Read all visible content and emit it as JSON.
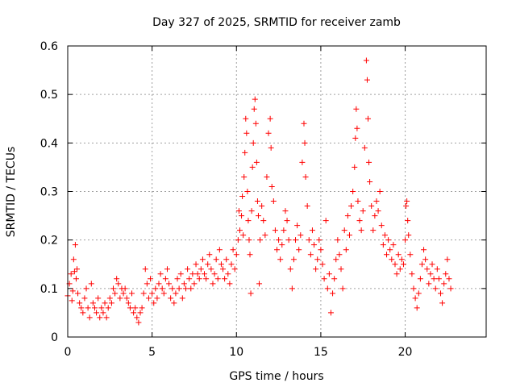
{
  "chart_data": {
    "type": "scatter",
    "title": "Day 327 of 2025, SRMTID for receiver zamb",
    "xlabel": "GPS time / hours",
    "ylabel": "SRMTID / TECUs",
    "xlim": [
      0,
      24.8
    ],
    "ylim": [
      0,
      0.6
    ],
    "grid": true,
    "marker": "+",
    "series_color": "#ff0000",
    "x_ticks": [
      "0",
      "5",
      "10",
      "15",
      "20"
    ],
    "y_ticks": [
      "0",
      "0.1",
      "0.2",
      "0.3",
      "0.4",
      "0.5",
      "0.6"
    ],
    "series": [
      {
        "name": "SRMTID",
        "points": [
          [
            0.0,
            0.085
          ],
          [
            0.1,
            0.11
          ],
          [
            0.2,
            0.13
          ],
          [
            0.25,
            0.075
          ],
          [
            0.3,
            0.095
          ],
          [
            0.35,
            0.16
          ],
          [
            0.4,
            0.135
          ],
          [
            0.45,
            0.19
          ],
          [
            0.5,
            0.12
          ],
          [
            0.55,
            0.14
          ],
          [
            0.6,
            0.09
          ],
          [
            0.7,
            0.07
          ],
          [
            0.8,
            0.06
          ],
          [
            0.9,
            0.05
          ],
          [
            1.0,
            0.08
          ],
          [
            1.1,
            0.1
          ],
          [
            1.2,
            0.06
          ],
          [
            1.3,
            0.04
          ],
          [
            1.4,
            0.11
          ],
          [
            1.5,
            0.07
          ],
          [
            1.6,
            0.06
          ],
          [
            1.7,
            0.05
          ],
          [
            1.8,
            0.08
          ],
          [
            1.9,
            0.04
          ],
          [
            2.0,
            0.06
          ],
          [
            2.1,
            0.05
          ],
          [
            2.2,
            0.07
          ],
          [
            2.3,
            0.04
          ],
          [
            2.4,
            0.06
          ],
          [
            2.5,
            0.08
          ],
          [
            2.6,
            0.07
          ],
          [
            2.7,
            0.1
          ],
          [
            2.8,
            0.09
          ],
          [
            2.9,
            0.12
          ],
          [
            3.0,
            0.11
          ],
          [
            3.1,
            0.08
          ],
          [
            3.2,
            0.1
          ],
          [
            3.3,
            0.09
          ],
          [
            3.4,
            0.1
          ],
          [
            3.5,
            0.08
          ],
          [
            3.6,
            0.07
          ],
          [
            3.7,
            0.06
          ],
          [
            3.8,
            0.09
          ],
          [
            3.9,
            0.05
          ],
          [
            4.0,
            0.06
          ],
          [
            4.1,
            0.04
          ],
          [
            4.2,
            0.03
          ],
          [
            4.3,
            0.05
          ],
          [
            4.4,
            0.06
          ],
          [
            4.5,
            0.09
          ],
          [
            4.6,
            0.14
          ],
          [
            4.7,
            0.11
          ],
          [
            4.8,
            0.08
          ],
          [
            4.9,
            0.12
          ],
          [
            5.0,
            0.09
          ],
          [
            5.1,
            0.07
          ],
          [
            5.2,
            0.1
          ],
          [
            5.3,
            0.08
          ],
          [
            5.4,
            0.11
          ],
          [
            5.5,
            0.13
          ],
          [
            5.6,
            0.1
          ],
          [
            5.7,
            0.09
          ],
          [
            5.8,
            0.12
          ],
          [
            5.9,
            0.14
          ],
          [
            6.0,
            0.11
          ],
          [
            6.1,
            0.08
          ],
          [
            6.2,
            0.1
          ],
          [
            6.3,
            0.07
          ],
          [
            6.4,
            0.09
          ],
          [
            6.5,
            0.12
          ],
          [
            6.6,
            0.1
          ],
          [
            6.7,
            0.13
          ],
          [
            6.8,
            0.08
          ],
          [
            6.9,
            0.11
          ],
          [
            7.0,
            0.1
          ],
          [
            7.1,
            0.14
          ],
          [
            7.2,
            0.12
          ],
          [
            7.3,
            0.1
          ],
          [
            7.4,
            0.13
          ],
          [
            7.5,
            0.11
          ],
          [
            7.6,
            0.15
          ],
          [
            7.7,
            0.13
          ],
          [
            7.8,
            0.12
          ],
          [
            7.9,
            0.14
          ],
          [
            8.0,
            0.16
          ],
          [
            8.1,
            0.13
          ],
          [
            8.2,
            0.12
          ],
          [
            8.3,
            0.15
          ],
          [
            8.4,
            0.17
          ],
          [
            8.5,
            0.14
          ],
          [
            8.6,
            0.11
          ],
          [
            8.7,
            0.13
          ],
          [
            8.8,
            0.16
          ],
          [
            8.9,
            0.12
          ],
          [
            9.0,
            0.18
          ],
          [
            9.1,
            0.15
          ],
          [
            9.2,
            0.14
          ],
          [
            9.3,
            0.12
          ],
          [
            9.4,
            0.16
          ],
          [
            9.5,
            0.13
          ],
          [
            9.6,
            0.11
          ],
          [
            9.7,
            0.15
          ],
          [
            9.8,
            0.18
          ],
          [
            9.9,
            0.14
          ],
          [
            10.0,
            0.17
          ],
          [
            10.1,
            0.2
          ],
          [
            10.15,
            0.26
          ],
          [
            10.2,
            0.22
          ],
          [
            10.3,
            0.25
          ],
          [
            10.35,
            0.29
          ],
          [
            10.4,
            0.21
          ],
          [
            10.45,
            0.33
          ],
          [
            10.5,
            0.38
          ],
          [
            10.55,
            0.45
          ],
          [
            10.6,
            0.42
          ],
          [
            10.65,
            0.3
          ],
          [
            10.7,
            0.24
          ],
          [
            10.75,
            0.2
          ],
          [
            10.8,
            0.17
          ],
          [
            10.85,
            0.09
          ],
          [
            10.9,
            0.26
          ],
          [
            10.95,
            0.35
          ],
          [
            11.0,
            0.4
          ],
          [
            11.05,
            0.47
          ],
          [
            11.1,
            0.49
          ],
          [
            11.15,
            0.44
          ],
          [
            11.2,
            0.36
          ],
          [
            11.25,
            0.28
          ],
          [
            11.3,
            0.25
          ],
          [
            11.35,
            0.11
          ],
          [
            11.4,
            0.2
          ],
          [
            11.5,
            0.27
          ],
          [
            11.6,
            0.24
          ],
          [
            11.7,
            0.21
          ],
          [
            11.8,
            0.33
          ],
          [
            11.9,
            0.42
          ],
          [
            12.0,
            0.45
          ],
          [
            12.05,
            0.39
          ],
          [
            12.1,
            0.31
          ],
          [
            12.2,
            0.28
          ],
          [
            12.3,
            0.22
          ],
          [
            12.4,
            0.18
          ],
          [
            12.5,
            0.2
          ],
          [
            12.6,
            0.16
          ],
          [
            12.7,
            0.19
          ],
          [
            12.8,
            0.22
          ],
          [
            12.9,
            0.26
          ],
          [
            13.0,
            0.24
          ],
          [
            13.1,
            0.2
          ],
          [
            13.2,
            0.14
          ],
          [
            13.3,
            0.1
          ],
          [
            13.4,
            0.16
          ],
          [
            13.5,
            0.2
          ],
          [
            13.6,
            0.23
          ],
          [
            13.7,
            0.18
          ],
          [
            13.8,
            0.21
          ],
          [
            13.9,
            0.36
          ],
          [
            14.0,
            0.44
          ],
          [
            14.05,
            0.4
          ],
          [
            14.1,
            0.33
          ],
          [
            14.2,
            0.27
          ],
          [
            14.3,
            0.2
          ],
          [
            14.4,
            0.17
          ],
          [
            14.5,
            0.22
          ],
          [
            14.6,
            0.19
          ],
          [
            14.7,
            0.14
          ],
          [
            14.8,
            0.16
          ],
          [
            14.9,
            0.2
          ],
          [
            15.0,
            0.18
          ],
          [
            15.1,
            0.15
          ],
          [
            15.2,
            0.12
          ],
          [
            15.3,
            0.24
          ],
          [
            15.4,
            0.1
          ],
          [
            15.5,
            0.13
          ],
          [
            15.6,
            0.05
          ],
          [
            15.7,
            0.09
          ],
          [
            15.8,
            0.12
          ],
          [
            15.9,
            0.16
          ],
          [
            16.0,
            0.2
          ],
          [
            16.1,
            0.17
          ],
          [
            16.2,
            0.14
          ],
          [
            16.3,
            0.1
          ],
          [
            16.4,
            0.22
          ],
          [
            16.5,
            0.18
          ],
          [
            16.6,
            0.25
          ],
          [
            16.7,
            0.21
          ],
          [
            16.8,
            0.27
          ],
          [
            16.9,
            0.3
          ],
          [
            17.0,
            0.35
          ],
          [
            17.05,
            0.41
          ],
          [
            17.1,
            0.47
          ],
          [
            17.15,
            0.43
          ],
          [
            17.2,
            0.28
          ],
          [
            17.3,
            0.24
          ],
          [
            17.4,
            0.22
          ],
          [
            17.5,
            0.26
          ],
          [
            17.6,
            0.39
          ],
          [
            17.7,
            0.57
          ],
          [
            17.75,
            0.53
          ],
          [
            17.8,
            0.45
          ],
          [
            17.85,
            0.36
          ],
          [
            17.9,
            0.32
          ],
          [
            18.0,
            0.27
          ],
          [
            18.1,
            0.22
          ],
          [
            18.2,
            0.25
          ],
          [
            18.3,
            0.28
          ],
          [
            18.4,
            0.26
          ],
          [
            18.5,
            0.3
          ],
          [
            18.6,
            0.23
          ],
          [
            18.7,
            0.19
          ],
          [
            18.8,
            0.21
          ],
          [
            18.9,
            0.17
          ],
          [
            19.0,
            0.2
          ],
          [
            19.1,
            0.18
          ],
          [
            19.2,
            0.16
          ],
          [
            19.3,
            0.19
          ],
          [
            19.4,
            0.15
          ],
          [
            19.5,
            0.13
          ],
          [
            19.6,
            0.17
          ],
          [
            19.7,
            0.14
          ],
          [
            19.8,
            0.16
          ],
          [
            19.9,
            0.15
          ],
          [
            20.0,
            0.2
          ],
          [
            20.05,
            0.27
          ],
          [
            20.1,
            0.28
          ],
          [
            20.15,
            0.24
          ],
          [
            20.2,
            0.21
          ],
          [
            20.3,
            0.17
          ],
          [
            20.4,
            0.13
          ],
          [
            20.5,
            0.1
          ],
          [
            20.6,
            0.08
          ],
          [
            20.7,
            0.06
          ],
          [
            20.8,
            0.09
          ],
          [
            20.9,
            0.12
          ],
          [
            21.0,
            0.15
          ],
          [
            21.1,
            0.18
          ],
          [
            21.2,
            0.16
          ],
          [
            21.3,
            0.14
          ],
          [
            21.4,
            0.11
          ],
          [
            21.5,
            0.13
          ],
          [
            21.6,
            0.15
          ],
          [
            21.7,
            0.12
          ],
          [
            21.8,
            0.1
          ],
          [
            21.9,
            0.14
          ],
          [
            22.0,
            0.12
          ],
          [
            22.1,
            0.09
          ],
          [
            22.2,
            0.07
          ],
          [
            22.3,
            0.11
          ],
          [
            22.4,
            0.13
          ],
          [
            22.5,
            0.16
          ],
          [
            22.6,
            0.12
          ],
          [
            22.7,
            0.1
          ]
        ]
      }
    ]
  }
}
